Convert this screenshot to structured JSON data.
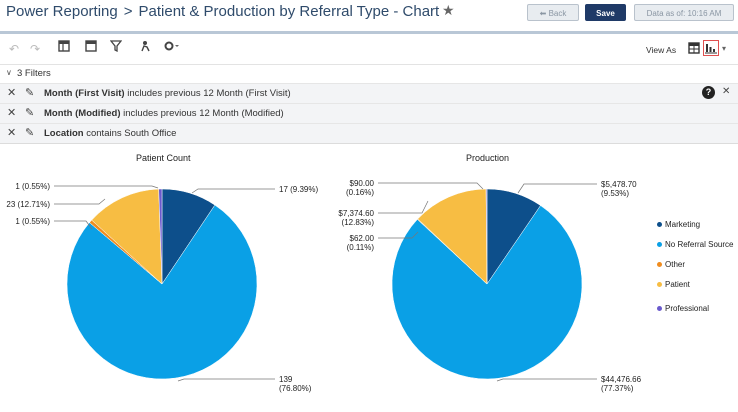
{
  "header": {
    "breadcrumb_root": "Power Reporting",
    "separator": ">",
    "page_title": "Patient & Production by Referral Type - Chart",
    "back_label": "Back",
    "save_label": "Save",
    "data_as_of": "Data as of: 10:16 AM"
  },
  "toolbar": {
    "view_as_label": "View As"
  },
  "filters": {
    "summary": "3 Filters",
    "items": [
      {
        "field": "Month (First Visit)",
        "rest": " includes previous 12 Month (First Visit)"
      },
      {
        "field": "Month (Modified)",
        "rest": " includes previous 12 Month (Modified)"
      },
      {
        "field": "Location",
        "rest": " contains South Office"
      }
    ]
  },
  "colors": {
    "Marketing": "#0d4f8b",
    "No Referral Source": "#0aa0e6",
    "Other": "#f08c1e",
    "Patient": "#f7bd43",
    "Professional": "#6a5acd"
  },
  "legend": [
    "Marketing",
    "No Referral Source",
    "Other",
    "Patient",
    "Professional"
  ],
  "chart_data": [
    {
      "type": "pie",
      "title": "Patient Count",
      "categories": [
        "Marketing",
        "No Referral Source",
        "Other",
        "Patient",
        "Professional"
      ],
      "values": [
        17,
        139,
        1,
        23,
        1
      ],
      "labels": [
        {
          "category": "Marketing",
          "line1": "17 (9.39%)",
          "line2": ""
        },
        {
          "category": "No Referral Source",
          "line1": "139",
          "line2": "(76.80%)"
        },
        {
          "category": "Other",
          "line1": "1 (0.55%)",
          "line2": ""
        },
        {
          "category": "Patient",
          "line1": "23 (12.71%)",
          "line2": ""
        },
        {
          "category": "Professional",
          "line1": "1 (0.55%)",
          "line2": ""
        }
      ]
    },
    {
      "type": "pie",
      "title": "Production",
      "categories": [
        "Marketing",
        "No Referral Source",
        "Other",
        "Patient",
        "Professional"
      ],
      "values": [
        5478.7,
        44476.66,
        62.0,
        7374.6,
        90.0
      ],
      "labels": [
        {
          "category": "Marketing",
          "line1": "$5,478.70",
          "line2": "(9.53%)"
        },
        {
          "category": "No Referral Source",
          "line1": "$44,476.66",
          "line2": "(77.37%)"
        },
        {
          "category": "Other",
          "line1": "$62.00",
          "line2": "(0.11%)"
        },
        {
          "category": "Patient",
          "line1": "$7,374.60",
          "line2": "(12.83%)"
        },
        {
          "category": "Professional",
          "line1": "$90.00",
          "line2": "(0.16%)"
        }
      ]
    }
  ]
}
